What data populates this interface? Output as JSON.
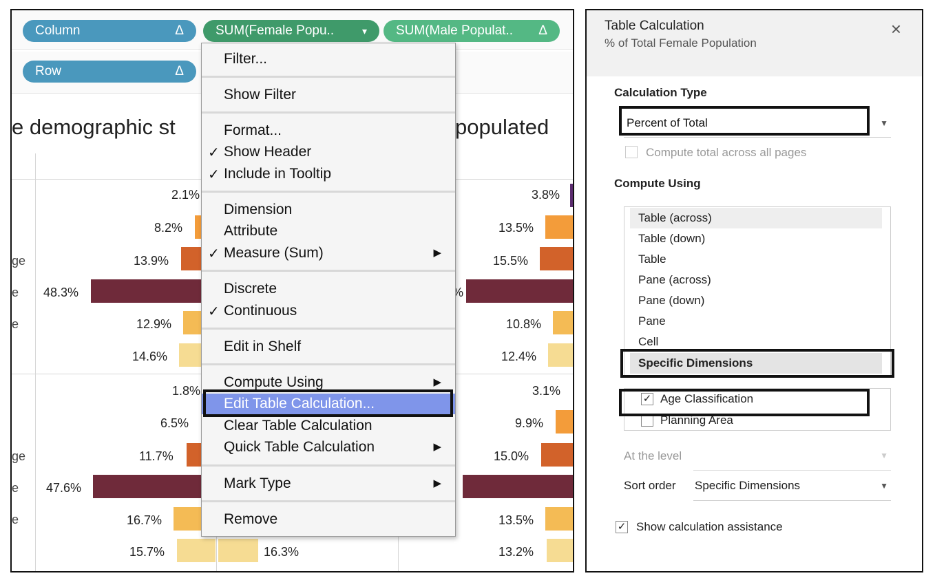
{
  "shelves": {
    "columns_pills": [
      {
        "label": "Column",
        "marker": "Δ"
      },
      {
        "label": "SUM(Female Popu..",
        "marker": "▾"
      },
      {
        "label": "SUM(Male Populat..",
        "marker": "Δ"
      }
    ],
    "rows_pills": [
      {
        "label": "Row",
        "marker": "Δ"
      }
    ]
  },
  "view": {
    "heading_left": "e demographic st",
    "heading_right": "populated",
    "row_labels": [
      "ge",
      "e",
      "e",
      "ge",
      "e",
      "e"
    ],
    "female_top": [
      "2.1%",
      "8.2%",
      "13.9%",
      "48.3%",
      "12.9%",
      "14.6%"
    ],
    "female_bottom": [
      "1.8%",
      "6.5%",
      "11.7%",
      "47.6%",
      "16.7%",
      "15.7%"
    ],
    "male_top": [
      "3.8%",
      "13.5%",
      "15.5%",
      "%",
      "10.8%",
      "12.4%"
    ],
    "male_bottom": [
      "3.1%",
      "9.9%",
      "15.0%",
      "13.5%",
      "13.2%"
    ],
    "middle_bottom": "16.3%",
    "colors": {
      "c1": "#5b2c6f",
      "c2": "#f39c3a",
      "c3": "#d2622a",
      "c4": "#6f2a3a",
      "c5": "#f4bb55",
      "c6": "#f6dc93"
    }
  },
  "menu": {
    "filter": "Filter...",
    "show_filter": "Show Filter",
    "format": "Format...",
    "show_header": "Show Header",
    "include_tooltip": "Include in Tooltip",
    "dimension": "Dimension",
    "attribute": "Attribute",
    "measure_sum": "Measure (Sum)",
    "discrete": "Discrete",
    "continuous": "Continuous",
    "edit_in_shelf": "Edit in Shelf",
    "compute_using": "Compute Using",
    "edit_table_calc": "Edit Table Calculation...",
    "clear_table_calc": "Clear Table Calculation",
    "quick_table_calc": "Quick Table Calculation",
    "mark_type": "Mark Type",
    "remove": "Remove",
    "check": "✓",
    "submenu_arrow": "▶"
  },
  "dialog": {
    "title": "Table Calculation",
    "subtitle": "% of Total Female Population",
    "close": "×",
    "calc_type_label": "Calculation Type",
    "calc_type_value": "Percent of Total",
    "compute_across_pages": "Compute total across all pages",
    "compute_using_label": "Compute Using",
    "compute_options": [
      "Table (across)",
      "Table (down)",
      "Table",
      "Pane (across)",
      "Pane (down)",
      "Pane",
      "Cell",
      "Specific Dimensions"
    ],
    "dimensions": [
      {
        "label": "Age Classification",
        "checked": true
      },
      {
        "label": "Planning Area",
        "checked": false
      }
    ],
    "at_level_label": "At the level",
    "sort_order_label": "Sort order",
    "sort_order_value": "Specific Dimensions",
    "show_assistance": "Show calculation assistance"
  }
}
